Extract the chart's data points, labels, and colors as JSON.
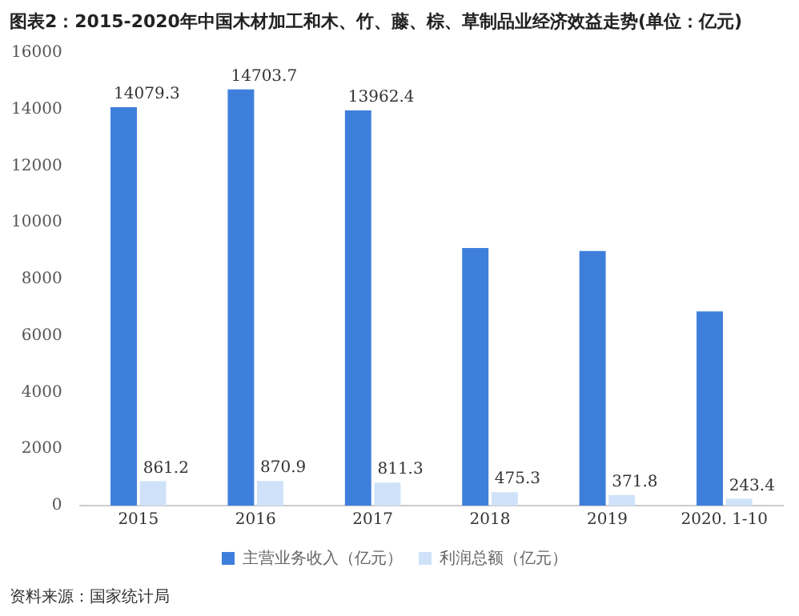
{
  "chart_data": {
    "type": "bar",
    "title": "图表2：2015-2020年中国木材加工和木、竹、藤、棕、草制品业经济效益走势(单位：亿元)",
    "categories": [
      "2015",
      "2016",
      "2017",
      "2018",
      "2019",
      "2020. 1-10"
    ],
    "series": [
      {
        "name": "主营业务收入（亿元）",
        "color": "#3f7fdc",
        "values": [
          14079.3,
          14703.7,
          13962.4,
          9100,
          9000,
          6860
        ],
        "value_labels": [
          "14079.3",
          "14703.7",
          "13962.4",
          null,
          null,
          null
        ]
      },
      {
        "name": "利润总额（亿元）",
        "color": "#cfe2fa",
        "values": [
          861.2,
          870.9,
          811.3,
          475.3,
          371.8,
          243.4
        ],
        "value_labels": [
          "861.2",
          "870.9",
          "811.3",
          "475.3",
          "371.8",
          "243.4"
        ]
      }
    ],
    "ylim": [
      0,
      16000
    ],
    "yticks": [
      0,
      2000,
      4000,
      6000,
      8000,
      10000,
      12000,
      14000,
      16000
    ],
    "grid": false,
    "legend": "bottom",
    "annotations": [
      "资料来源：国家统计局"
    ]
  }
}
